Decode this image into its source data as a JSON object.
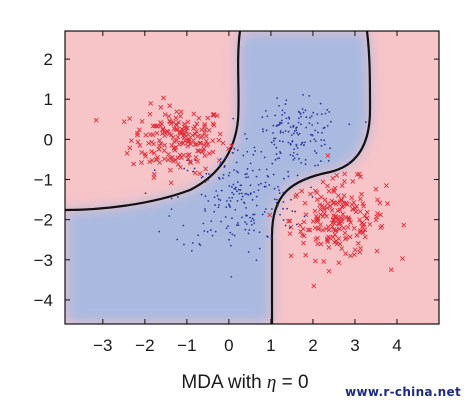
{
  "chart_data": {
    "type": "scatter",
    "title": "",
    "xlabel_prefix": "MDA with ",
    "xlabel_symbol": "η",
    "xlabel_suffix": " = 0",
    "ylabel": "",
    "xlim": [
      -3.9,
      5.0
    ],
    "ylim": [
      -4.6,
      2.7
    ],
    "x_ticks": [
      -3,
      -2,
      -1,
      0,
      1,
      2,
      3,
      4
    ],
    "y_ticks": [
      2,
      1,
      0,
      -1,
      -2,
      -3,
      -4
    ],
    "x_tick_labels": [
      "−3",
      "−2",
      "−1",
      "0",
      "1",
      "2",
      "3",
      "4"
    ],
    "y_tick_labels": [
      "2",
      "1",
      "0",
      "−1",
      "−2",
      "−3",
      "−4"
    ],
    "background": {
      "class_red": "#f7c4c8",
      "class_blue": "#a9b9e0"
    },
    "series": [
      {
        "marker": "x",
        "color": "#e0303a",
        "clusters": [
          {
            "center": [
              -1.2,
              0.0
            ],
            "spread": [
              0.75,
              0.55
            ],
            "count": 190
          },
          {
            "center": [
              2.6,
              -2.0
            ],
            "spread": [
              0.75,
              0.65
            ],
            "count": 200
          }
        ]
      },
      {
        "marker": "dot",
        "color": "#2a3a9a",
        "clusters": [
          {
            "center": [
              1.6,
              0.1
            ],
            "spread": [
              0.7,
              0.55
            ],
            "count": 150
          },
          {
            "center": [
              0.2,
              -1.5
            ],
            "spread": [
              1.0,
              0.9
            ],
            "count": 200
          }
        ]
      }
    ],
    "grid": false,
    "legend": "none"
  },
  "watermark": "www.r-china.net"
}
